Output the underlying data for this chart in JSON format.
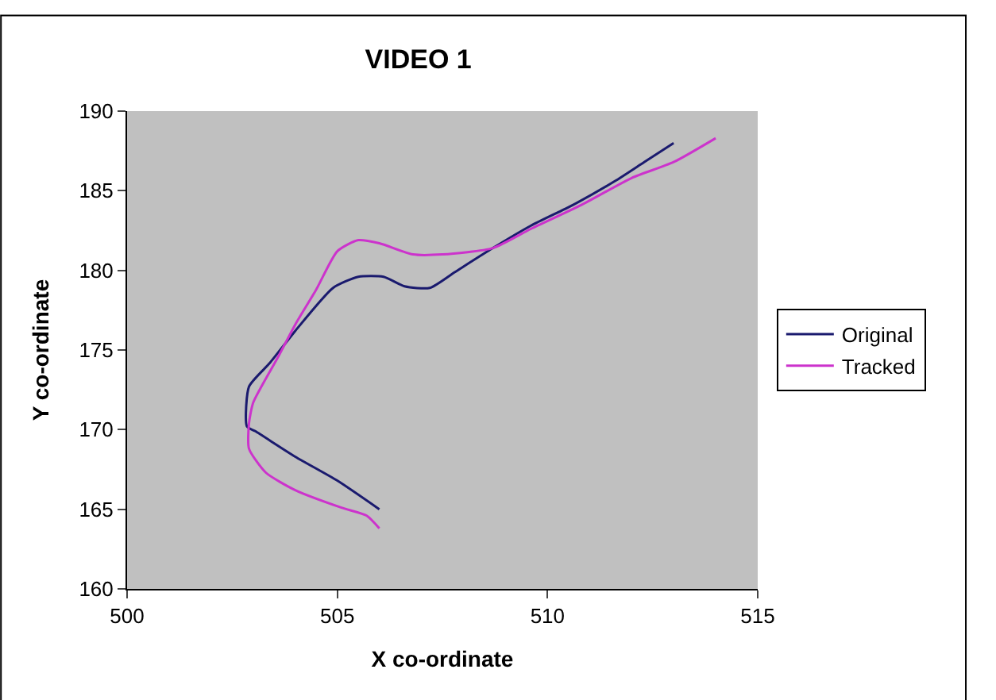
{
  "chart_data": {
    "type": "line",
    "title": "VIDEO 1",
    "xlabel": "X co-ordinate",
    "ylabel": "Y co-ordinate",
    "xlim": [
      500,
      515
    ],
    "xticks": [
      500,
      505,
      510,
      515
    ],
    "ylim": [
      160,
      190
    ],
    "yticks": [
      160,
      165,
      170,
      175,
      180,
      185,
      190
    ],
    "grid": false,
    "legend": "right",
    "marker": "none",
    "line_style": "solid",
    "series": [
      {
        "name": "Original",
        "color": "#1a1a6e",
        "x": [
          506.0,
          505.0,
          504.0,
          503.05,
          502.85,
          502.9,
          503.4,
          504.0,
          504.9,
          505.5,
          506.1,
          506.6,
          507.2,
          507.8,
          508.7,
          509.6,
          510.6,
          511.6,
          512.3,
          513.0
        ],
        "values": [
          165.0,
          166.8,
          168.3,
          169.9,
          170.2,
          172.7,
          174.2,
          176.2,
          178.9,
          179.6,
          179.6,
          179.0,
          178.9,
          179.9,
          181.4,
          182.8,
          184.1,
          185.6,
          186.8,
          188.0
        ]
      },
      {
        "name": "Tracked",
        "color": "#cc33cc",
        "x": [
          506.0,
          505.7,
          505.1,
          504.0,
          503.3,
          502.9,
          502.9,
          503.0,
          503.6,
          504.0,
          504.5,
          505.0,
          505.5,
          506.0,
          506.8,
          507.5,
          508.7,
          509.6,
          510.8,
          512.0,
          513.0,
          514.0
        ],
        "values": [
          163.8,
          164.6,
          165.1,
          166.2,
          167.3,
          168.8,
          170.4,
          171.7,
          174.6,
          176.6,
          178.8,
          181.2,
          181.9,
          181.7,
          181.0,
          181.0,
          181.4,
          182.6,
          184.1,
          185.8,
          186.8,
          188.3
        ]
      }
    ]
  }
}
